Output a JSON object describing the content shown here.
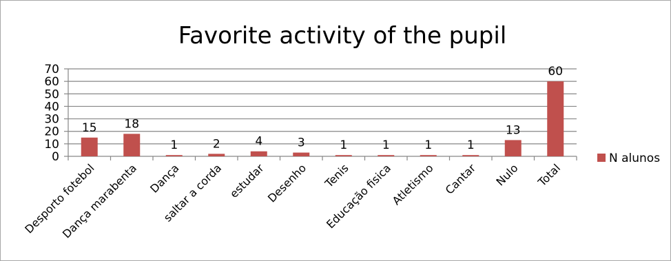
{
  "chart_data": {
    "type": "bar",
    "title": "Favorite activity of the pupil",
    "xlabel": "",
    "ylabel": "",
    "categories": [
      "Desporto fotebol",
      "Dança marabenta",
      "Dança",
      "saltar a corda",
      "estudar",
      "Desenho",
      "Tenis",
      "Educação fisica",
      "Atletismo",
      "Cantar",
      "Nulo",
      "Total"
    ],
    "series": [
      {
        "name": "N alunos",
        "color": "#c0504d",
        "values": [
          15,
          18,
          1,
          2,
          4,
          3,
          1,
          1,
          1,
          1,
          13,
          60
        ]
      }
    ],
    "ylim": [
      0,
      70
    ],
    "yticks": [
      0,
      10,
      20,
      30,
      40,
      50,
      60,
      70
    ],
    "grid": true,
    "legend_position": "right",
    "data_labels": true
  }
}
